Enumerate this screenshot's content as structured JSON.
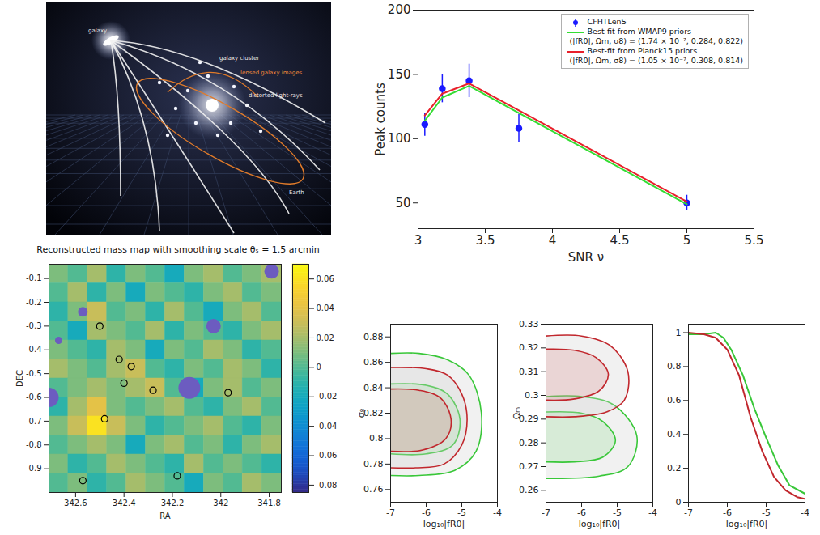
{
  "illustration": {
    "labels": {
      "source": "galaxy",
      "lens": "galaxy cluster",
      "images": "lensed galaxy images",
      "rays": "distorted light-rays",
      "observer": "Earth"
    }
  },
  "chart_data": [
    {
      "type": "line",
      "x_label": "SNR ν",
      "y_label": "Peak counts",
      "x": [
        3.05,
        3.18,
        3.38,
        3.75,
        5.0
      ],
      "xlim": [
        3,
        5.5
      ],
      "xticks": [
        3,
        3.5,
        4,
        4.5,
        5,
        5.5
      ],
      "ylim": [
        30,
        200
      ],
      "yticks": [
        50,
        100,
        150,
        200
      ],
      "grid": false,
      "legend": "upper right",
      "series": [
        {
          "name": "CFHTLenS",
          "type": "scatter",
          "marker": "circle",
          "color": "#1a1aff",
          "values": [
            111,
            139,
            145,
            108,
            50
          ],
          "errors": [
            9,
            11,
            13,
            11,
            6
          ]
        },
        {
          "name": "Best-fit from WMAP9 priors",
          "description": "(|fR0|, Ωm, σ8) = (1.74 × 10⁻⁷, 0.284, 0.822)",
          "type": "line",
          "color": "#33dd33",
          "values": [
            114,
            132,
            141,
            120,
            49
          ]
        },
        {
          "name": "Best-fit from Planck15 priors",
          "description": "(|fR0|, Ωm, σ8) = (1.05 × 10⁻⁷, 0.308, 0.814)",
          "type": "line",
          "color": "#e8202a",
          "values": [
            118,
            135,
            143,
            122,
            51
          ]
        }
      ]
    },
    {
      "type": "heatmap",
      "title": "Reconstructed mass map with smoothing scale θₛ = 1.5 arcmin",
      "x_label": "RA",
      "y_label": "DEC",
      "xlim": [
        342.71,
        341.75
      ],
      "xticks": [
        342.6,
        342.4,
        342.2,
        342,
        341.8
      ],
      "ylim": [
        -1,
        -0.04
      ],
      "yticks": [
        -0.1,
        -0.2,
        -0.3,
        -0.4,
        -0.5,
        -0.6,
        -0.7,
        -0.8,
        -0.9
      ],
      "x": [
        342.67,
        342.59,
        342.51,
        342.43,
        342.35,
        342.27,
        342.19,
        342.11,
        342.03,
        341.95,
        341.87,
        341.79
      ],
      "y": [
        -0.08,
        -0.16,
        -0.24,
        -0.32,
        -0.4,
        -0.48,
        -0.56,
        -0.64,
        -0.72,
        -0.8,
        -0.88,
        -0.96
      ],
      "values": [
        [
          0.01,
          0,
          0.02,
          -0.01,
          0.01,
          0,
          -0.02,
          0.01,
          0.02,
          0,
          0.01,
          0.02
        ],
        [
          0,
          0.02,
          -0.01,
          0.01,
          -0.02,
          0.01,
          0,
          -0.01,
          0.01,
          0.02,
          0,
          0.01
        ],
        [
          -0.01,
          0.01,
          0.03,
          0,
          0.01,
          -0.01,
          0.02,
          0,
          -0.02,
          0.01,
          0.02,
          0
        ],
        [
          0,
          -0.02,
          0.02,
          0.01,
          0,
          0.02,
          -0.01,
          0.01,
          0,
          -0.01,
          0.01,
          0.02
        ],
        [
          0.01,
          0,
          -0.01,
          0.02,
          0.01,
          -0.02,
          0.01,
          0,
          0.02,
          0.01,
          -0.01,
          0
        ],
        [
          0.02,
          0.01,
          0,
          0.02,
          0.03,
          0,
          -0.01,
          0.01,
          0,
          0.02,
          0.01,
          -0.01
        ],
        [
          0,
          0.01,
          0.02,
          0.01,
          0.02,
          0.03,
          0,
          -0.02,
          0.01,
          0.02,
          0,
          0.01
        ],
        [
          -0.01,
          0.02,
          0.04,
          0.01,
          0,
          0.01,
          0.02,
          0,
          -0.01,
          0.01,
          0.02,
          0
        ],
        [
          0.01,
          0.03,
          0.06,
          0.03,
          0.01,
          -0.01,
          0,
          0.01,
          0.02,
          0,
          -0.01,
          0.01
        ],
        [
          0,
          0.01,
          0.02,
          0.01,
          -0.02,
          0.01,
          0.02,
          0,
          0.01,
          -0.01,
          0.01,
          0.02
        ],
        [
          0.01,
          -0.01,
          0,
          0.02,
          0.01,
          0,
          -0.01,
          0.02,
          0,
          0.01,
          0,
          -0.01
        ],
        [
          0,
          0.01,
          -0.01,
          0,
          0.02,
          0.01,
          0,
          -0.02,
          0.01,
          0,
          0.02,
          0.01
        ]
      ],
      "colorbar": {
        "lim": [
          -0.085,
          0.07
        ],
        "ticks": [
          0.06,
          0.04,
          0.02,
          0,
          -0.02,
          -0.04,
          -0.06,
          -0.08
        ]
      },
      "masks": {
        "color": "#6c5cc0",
        "regions": [
          {
            "x": 342.13,
            "y": -0.56,
            "r": 0.045
          },
          {
            "x": 342.03,
            "y": -0.3,
            "r": 0.03
          },
          {
            "x": 342.57,
            "y": -0.24,
            "r": 0.02
          },
          {
            "x": 342.67,
            "y": -0.36,
            "r": 0.015
          },
          {
            "x": 342.71,
            "y": -0.6,
            "r": 0.04
          },
          {
            "x": 341.79,
            "y": -0.07,
            "r": 0.03
          }
        ]
      },
      "peaks": {
        "color": "#000000",
        "x": [
          342.5,
          342.37,
          342.4,
          342.28,
          341.97,
          342.48,
          342.42,
          342.57,
          342.18
        ],
        "y": [
          -0.3,
          -0.47,
          -0.54,
          -0.57,
          -0.58,
          -0.69,
          -0.44,
          -0.95,
          -0.93
        ]
      }
    },
    {
      "type": "contour",
      "x_label": "log₁₀|fR0|",
      "y_label": "σ₈",
      "xlim": [
        -7,
        -4
      ],
      "xticks": [
        -7,
        -6,
        -5,
        -4
      ],
      "ylim": [
        0.75,
        0.89
      ],
      "yticks": [
        0.76,
        0.78,
        0.8,
        0.82,
        0.84,
        0.86,
        0.88
      ],
      "series": [
        {
          "color": "#39c739",
          "contours": [
            [
              [
                -7,
                0.867
              ],
              [
                -6.2,
                0.867
              ],
              [
                -5.4,
                0.862
              ],
              [
                -4.8,
                0.85
              ],
              [
                -4.45,
                0.82
              ],
              [
                -4.6,
                0.79
              ],
              [
                -5.2,
                0.775
              ],
              [
                -6.2,
                0.771
              ],
              [
                -7,
                0.771
              ]
            ],
            [
              [
                -7,
                0.843
              ],
              [
                -6,
                0.842
              ],
              [
                -5.4,
                0.835
              ],
              [
                -5.05,
                0.815
              ],
              [
                -5.25,
                0.795
              ],
              [
                -6,
                0.788
              ],
              [
                -7,
                0.788
              ]
            ]
          ]
        },
        {
          "color": "#c1272d",
          "contours": [
            [
              [
                -7,
                0.856
              ],
              [
                -6,
                0.855
              ],
              [
                -5.4,
                0.85
              ],
              [
                -5,
                0.835
              ],
              [
                -4.85,
                0.815
              ],
              [
                -5,
                0.795
              ],
              [
                -5.5,
                0.78
              ],
              [
                -6.3,
                0.777
              ],
              [
                -7,
                0.777
              ]
            ],
            [
              [
                -7,
                0.839
              ],
              [
                -6.2,
                0.838
              ],
              [
                -5.6,
                0.832
              ],
              [
                -5.3,
                0.815
              ],
              [
                -5.45,
                0.8
              ],
              [
                -6.1,
                0.791
              ],
              [
                -7,
                0.79
              ]
            ]
          ]
        }
      ]
    },
    {
      "type": "contour",
      "x_label": "log₁₀|fR0|",
      "y_label": "Ωₘ",
      "xlim": [
        -7,
        -4
      ],
      "xticks": [
        -7,
        -6,
        -5,
        -4
      ],
      "ylim": [
        0.255,
        0.33
      ],
      "yticks": [
        0.26,
        0.27,
        0.28,
        0.29,
        0.3,
        0.31,
        0.32,
        0.33
      ],
      "series": [
        {
          "color": "#39c739",
          "contours": [
            [
              [
                -7,
                0.2995
              ],
              [
                -6,
                0.2995
              ],
              [
                -5.1,
                0.296
              ],
              [
                -4.45,
                0.283
              ],
              [
                -4.7,
                0.27
              ],
              [
                -5.5,
                0.266
              ],
              [
                -7,
                0.265
              ]
            ],
            [
              [
                -7,
                0.293
              ],
              [
                -6,
                0.2925
              ],
              [
                -5.4,
                0.289
              ],
              [
                -5.05,
                0.281
              ],
              [
                -5.4,
                0.274
              ],
              [
                -6.2,
                0.272
              ],
              [
                -7,
                0.272
              ]
            ]
          ]
        },
        {
          "color": "#c1272d",
          "contours": [
            [
              [
                -7,
                0.325
              ],
              [
                -6,
                0.325
              ],
              [
                -5.2,
                0.321
              ],
              [
                -4.7,
                0.31
              ],
              [
                -4.8,
                0.298
              ],
              [
                -5.3,
                0.293
              ],
              [
                -6.2,
                0.291
              ],
              [
                -7,
                0.291
              ]
            ],
            [
              [
                -7,
                0.3195
              ],
              [
                -6.2,
                0.319
              ],
              [
                -5.6,
                0.316
              ],
              [
                -5.25,
                0.309
              ],
              [
                -5.5,
                0.302
              ],
              [
                -6.2,
                0.2985
              ],
              [
                -7,
                0.298
              ]
            ]
          ]
        }
      ]
    },
    {
      "type": "line",
      "x_label": "log₁₀|fR0|",
      "xlim": [
        -7,
        -4
      ],
      "xticks": [
        -7,
        -6,
        -5,
        -4
      ],
      "ylim": [
        0,
        1.05
      ],
      "yticks": [
        0,
        0.2,
        0.4,
        0.6,
        0.8,
        1
      ],
      "series": [
        {
          "type": "line",
          "color": "#39c739",
          "x": [
            -7,
            -6.6,
            -6.3,
            -6.1,
            -5.9,
            -5.6,
            -5.3,
            -5,
            -4.7,
            -4.4,
            -4
          ],
          "values": [
            0.99,
            0.99,
            1,
            0.97,
            0.9,
            0.75,
            0.55,
            0.38,
            0.22,
            0.1,
            0.05
          ]
        },
        {
          "type": "line",
          "color": "#c1272d",
          "x": [
            -7,
            -6.6,
            -6.3,
            -6,
            -5.7,
            -5.4,
            -5.1,
            -4.8,
            -4.5,
            -4.2,
            -4
          ],
          "values": [
            1,
            0.99,
            0.97,
            0.9,
            0.75,
            0.5,
            0.3,
            0.15,
            0.07,
            0.03,
            0.02
          ]
        }
      ]
    }
  ]
}
